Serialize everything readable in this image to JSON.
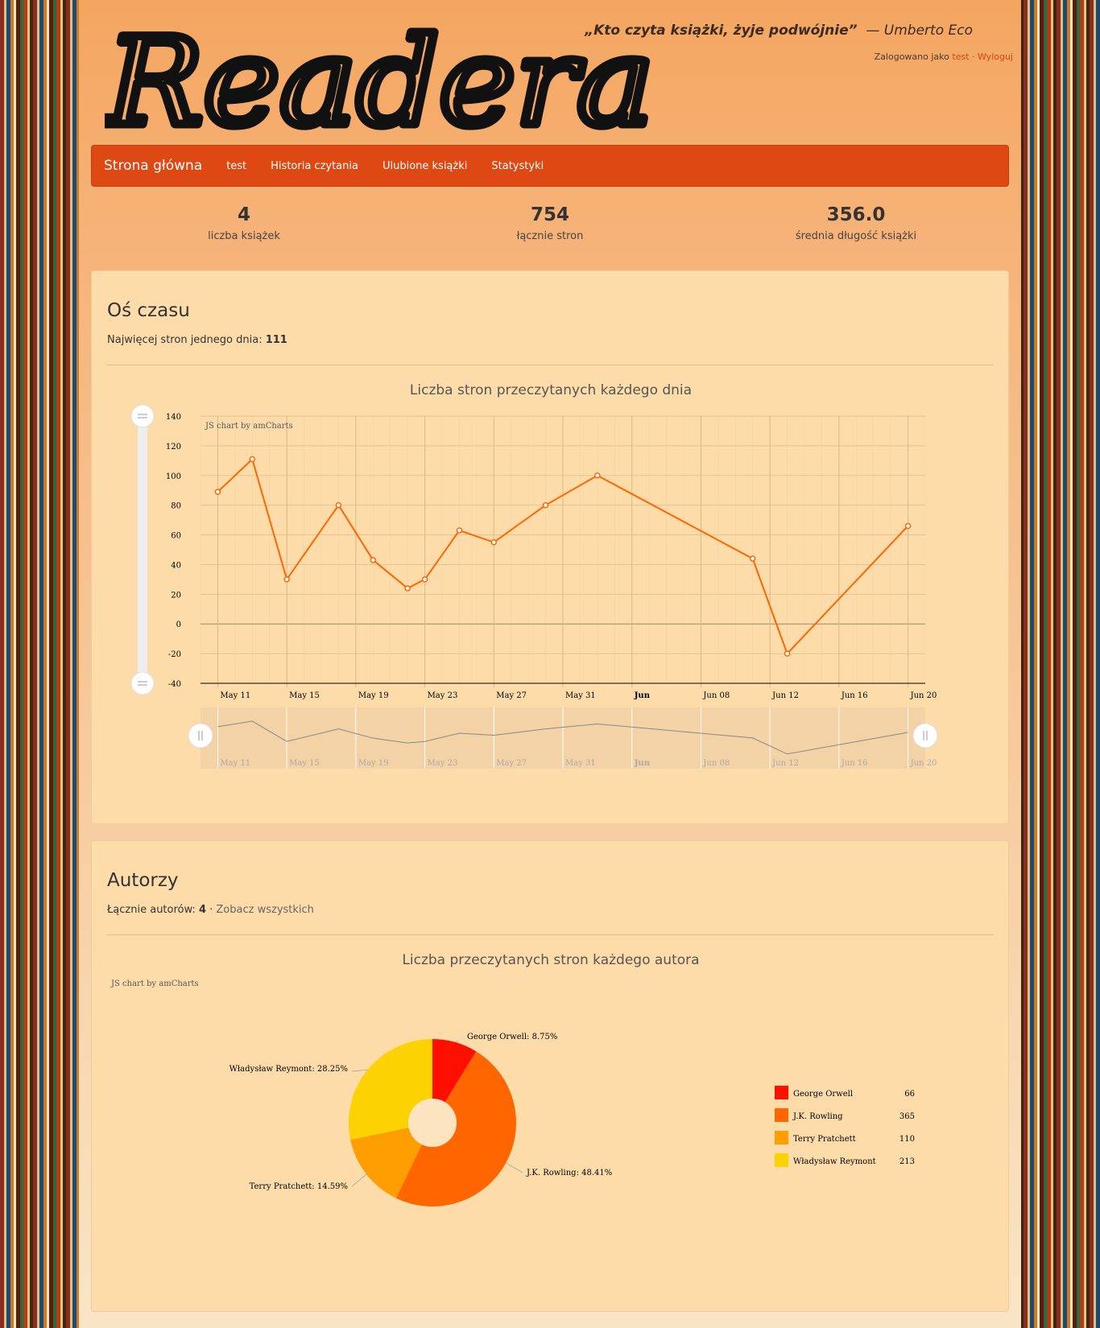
{
  "header": {
    "logo_text": "Readera",
    "quote": "„Kto czyta książki, żyje podwójnie”",
    "quote_author": "— Umberto Eco",
    "login_prefix": "Zalogowano jako",
    "login_user": "test",
    "login_sep": "·",
    "logout": "Wyloguj"
  },
  "nav": {
    "brand": "Strona główna",
    "items": [
      "test",
      "Historia czytania",
      "Ulubione książki",
      "Statystyki"
    ]
  },
  "stats": [
    {
      "value": "4",
      "label": "liczba książek"
    },
    {
      "value": "754",
      "label": "łącznie stron"
    },
    {
      "value": "356.0",
      "label": "średnia długość książki"
    }
  ],
  "timeline": {
    "heading": "Oś czasu",
    "max_label": "Najwięcej stron jednego dnia:",
    "max_value": "111",
    "credit": "JS chart by amCharts"
  },
  "authors": {
    "heading": "Autorzy",
    "total_label": "Łącznie autorów:",
    "total_value": "4",
    "sep": "·",
    "see_all": "Zobacz wszystkich",
    "credit": "JS chart by amCharts"
  },
  "colors": {
    "accent": "#dd4813",
    "line": "#ff6600"
  },
  "chart_data": [
    {
      "type": "line",
      "title": "Liczba stron przeczytanych każdego dnia",
      "x": [
        "2017-05-11",
        "2017-05-13",
        "2017-05-15",
        "2017-05-18",
        "2017-05-20",
        "2017-05-22",
        "2017-05-23",
        "2017-05-25",
        "2017-05-27",
        "2017-05-30",
        "2017-06-02",
        "2017-06-11",
        "2017-06-13",
        "2017-06-20"
      ],
      "values": [
        89,
        111,
        30,
        80,
        43,
        24,
        30,
        63,
        55,
        80,
        100,
        44,
        -20,
        66
      ],
      "ylim": [
        -40,
        140
      ],
      "yticks": [
        140,
        120,
        100,
        80,
        60,
        40,
        20,
        0,
        -20,
        -40
      ],
      "xticks": [
        "May 11",
        "May 15",
        "May 19",
        "May 23",
        "May 27",
        "May 31",
        "Jun",
        "Jun 08",
        "Jun 12",
        "Jun 16",
        "Jun 20"
      ],
      "grid": true
    },
    {
      "type": "pie",
      "title": "Liczba przeczytanych stron każdego autora",
      "categories": [
        "George Orwell",
        "J.K. Rowling",
        "Terry Pratchett",
        "Władysław Reymont"
      ],
      "values": [
        66,
        365,
        110,
        213
      ],
      "percent_labels": [
        "George Orwell: 8.75%",
        "J.K. Rowling: 48.41%",
        "Terry Pratchett: 14.59%",
        "Władysław Reymont: 28.25%"
      ],
      "colors": [
        "#ff0f00",
        "#ff6600",
        "#ff9e01",
        "#fcd202"
      ],
      "legend": "right"
    }
  ]
}
